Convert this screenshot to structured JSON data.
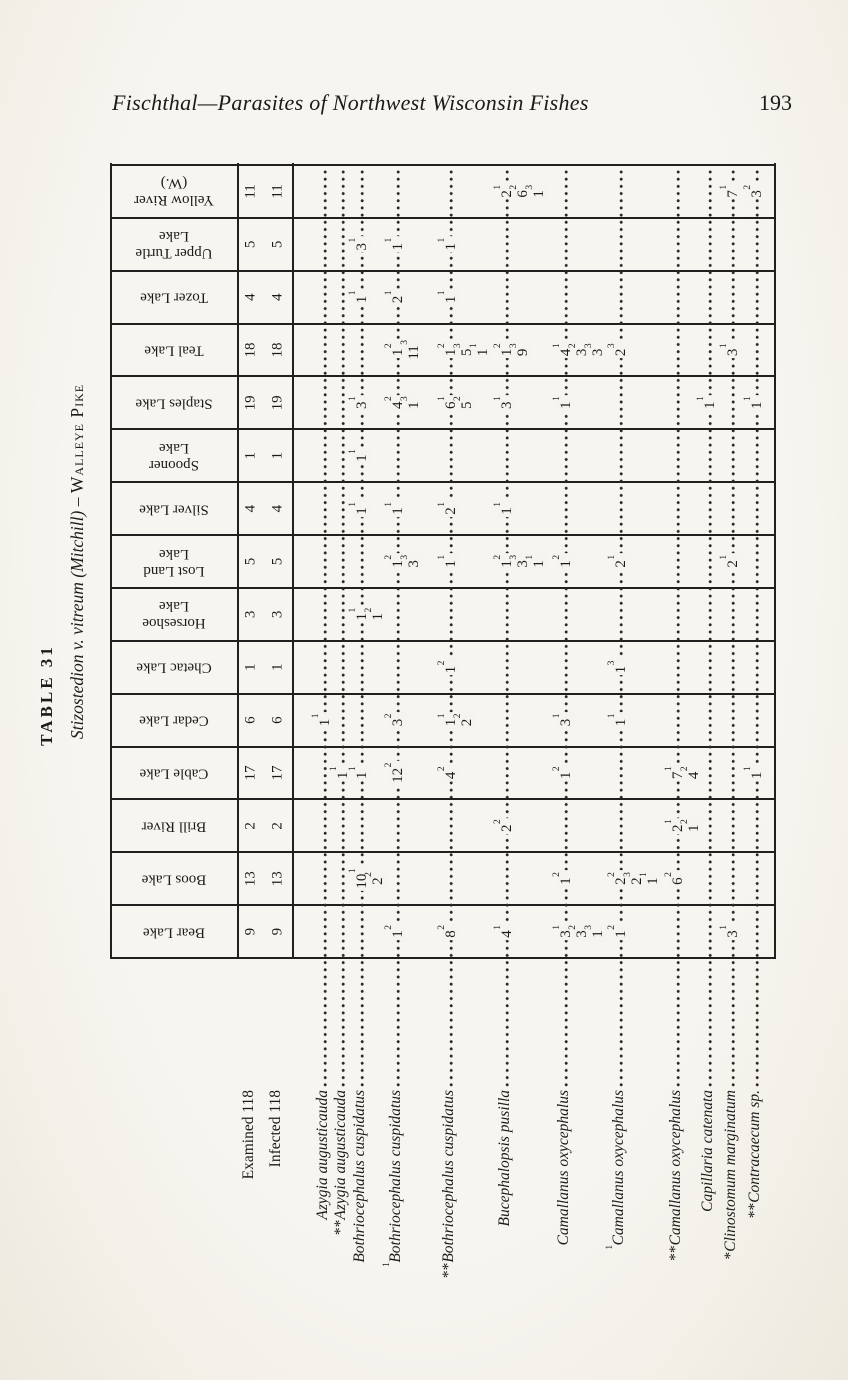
{
  "page": {
    "header_title": "Fischthal—Parasites of Northwest Wisconsin Fishes",
    "page_number": "193"
  },
  "table": {
    "title": "TABLE 31",
    "subtitle_italic": "Stizostedion v. vitreum (Mitchill) – ",
    "subtitle_caps": "Walleye Pike",
    "stub": {
      "examined_label": "Examined 118",
      "infected_label": "Infected 118"
    },
    "lakes": [
      {
        "name": "Bear Lake",
        "examined": "9",
        "infected": "9"
      },
      {
        "name": "Boos Lake",
        "examined": "13",
        "infected": "13"
      },
      {
        "name": "Brill River",
        "examined": "2",
        "infected": "2"
      },
      {
        "name": "Cable Lake",
        "examined": "17",
        "infected": "17"
      },
      {
        "name": "Cedar Lake",
        "examined": "6",
        "infected": "6"
      },
      {
        "name": "Chetac Lake",
        "examined": "1",
        "infected": "1"
      },
      {
        "name": "Horseshoe\nLake",
        "examined": "3",
        "infected": "3"
      },
      {
        "name": "Lost Land\nLake",
        "examined": "5",
        "infected": "5"
      },
      {
        "name": "Silver Lake",
        "examined": "4",
        "infected": "4"
      },
      {
        "name": "Spooner\nLake",
        "examined": "1",
        "infected": "1"
      },
      {
        "name": "Staples Lake",
        "examined": "19",
        "infected": "19"
      },
      {
        "name": "Teal Lake",
        "examined": "18",
        "infected": "18"
      },
      {
        "name": "Tozer Lake",
        "examined": "4",
        "infected": "4"
      },
      {
        "name": "Upper Turtle\nLake",
        "examined": "5",
        "infected": "5"
      },
      {
        "name": "Yellow River\n(W.)",
        "examined": "11",
        "infected": "11"
      }
    ],
    "species": [
      {
        "star": "",
        "sup": "",
        "name": "Azygia augusticauda"
      },
      {
        "star": "**",
        "sup": "",
        "name": "Azygia augusticauda"
      },
      {
        "star": "",
        "sup": "",
        "name": "Bothriocephalus cuspidatus"
      },
      {
        "star": "",
        "sup": "1",
        "name": "Bothriocephalus cuspidatus"
      },
      {
        "star": "**",
        "sup": "",
        "name": "Bothriocephalus cuspidatus"
      },
      {
        "star": "",
        "sup": "",
        "name": "Bucephalopsis pusilla"
      },
      {
        "star": "",
        "sup": "",
        "name": "Camallanus oxycephalus"
      },
      {
        "star": "",
        "sup": "1",
        "name": "Camallanus oxycephalus"
      },
      {
        "star": "**",
        "sup": "",
        "name": "Camallanus oxycephalus"
      },
      {
        "star": "",
        "sup": "",
        "name": "Capillaria catenata"
      },
      {
        "star": "*",
        "sup": "",
        "name": "Clinostomum marginatum"
      },
      {
        "star": "**",
        "sup": "",
        "name": "Contracaecum sp."
      }
    ],
    "cells": [
      {
        "lake": 0,
        "species": 3,
        "values": [
          "1^2"
        ]
      },
      {
        "lake": 0,
        "species": 4,
        "values": [
          "8^2"
        ]
      },
      {
        "lake": 0,
        "species": 5,
        "values": [
          "4^1"
        ]
      },
      {
        "lake": 0,
        "species": 6,
        "values": [
          "3^1",
          "3^2",
          "1^3"
        ]
      },
      {
        "lake": 0,
        "species": 7,
        "values": [
          "1^2"
        ]
      },
      {
        "lake": 0,
        "species": 10,
        "values": [
          "3^1"
        ]
      },
      {
        "lake": 1,
        "species": 2,
        "values": [
          "10^1",
          "2^2"
        ]
      },
      {
        "lake": 1,
        "species": 6,
        "values": [
          "1^2"
        ]
      },
      {
        "lake": 1,
        "species": 7,
        "values": [
          "2^2",
          "2^3",
          "1^1"
        ]
      },
      {
        "lake": 1,
        "species": 8,
        "values": [
          "6^2"
        ]
      },
      {
        "lake": 2,
        "species": 5,
        "values": [
          "2^2"
        ]
      },
      {
        "lake": 2,
        "species": 8,
        "values": [
          "2^1",
          "1^2"
        ]
      },
      {
        "lake": 3,
        "species": 1,
        "values": [
          "1^1"
        ]
      },
      {
        "lake": 3,
        "species": 2,
        "values": [
          "1^1"
        ]
      },
      {
        "lake": 3,
        "species": 3,
        "values": [
          "12^2"
        ]
      },
      {
        "lake": 3,
        "species": 4,
        "values": [
          "4^2"
        ]
      },
      {
        "lake": 3,
        "species": 6,
        "values": [
          "1^2"
        ]
      },
      {
        "lake": 3,
        "species": 8,
        "values": [
          "7^1",
          "4^2"
        ]
      },
      {
        "lake": 3,
        "species": 11,
        "values": [
          "1^1"
        ]
      },
      {
        "lake": 4,
        "species": 0,
        "values": [
          "1^1"
        ]
      },
      {
        "lake": 4,
        "species": 3,
        "values": [
          "3^2"
        ]
      },
      {
        "lake": 4,
        "species": 4,
        "values": [
          "1^1",
          "2^2"
        ]
      },
      {
        "lake": 4,
        "species": 6,
        "values": [
          "3^1"
        ]
      },
      {
        "lake": 4,
        "species": 7,
        "values": [
          "1^1"
        ]
      },
      {
        "lake": 5,
        "species": 4,
        "values": [
          "1^2"
        ]
      },
      {
        "lake": 5,
        "species": 7,
        "values": [
          "1^3"
        ]
      },
      {
        "lake": 6,
        "species": 2,
        "values": [
          "1^1",
          "1^2"
        ]
      },
      {
        "lake": 7,
        "species": 3,
        "values": [
          "1^2",
          "3^3"
        ]
      },
      {
        "lake": 7,
        "species": 4,
        "values": [
          "1^1"
        ]
      },
      {
        "lake": 7,
        "species": 5,
        "values": [
          "1^2",
          "3^3",
          "1^1"
        ]
      },
      {
        "lake": 7,
        "species": 6,
        "values": [
          "1^2"
        ]
      },
      {
        "lake": 7,
        "species": 7,
        "values": [
          "2^1"
        ]
      },
      {
        "lake": 7,
        "species": 10,
        "values": [
          "2^1"
        ]
      },
      {
        "lake": 8,
        "species": 2,
        "values": [
          "1^1"
        ]
      },
      {
        "lake": 8,
        "species": 3,
        "values": [
          "1^1"
        ]
      },
      {
        "lake": 8,
        "species": 4,
        "values": [
          "2^1"
        ]
      },
      {
        "lake": 8,
        "species": 5,
        "values": [
          "1^1"
        ]
      },
      {
        "lake": 9,
        "species": 2,
        "values": [
          "1^1"
        ]
      },
      {
        "lake": 10,
        "species": 2,
        "values": [
          "3^1"
        ]
      },
      {
        "lake": 10,
        "species": 3,
        "values": [
          "4^2",
          "1^3"
        ]
      },
      {
        "lake": 10,
        "species": 4,
        "values": [
          "6^1",
          "5^2"
        ]
      },
      {
        "lake": 10,
        "species": 5,
        "values": [
          "3^1"
        ]
      },
      {
        "lake": 10,
        "species": 6,
        "values": [
          "1^1"
        ]
      },
      {
        "lake": 10,
        "species": 9,
        "values": [
          "1^1"
        ]
      },
      {
        "lake": 10,
        "species": 11,
        "values": [
          "1^1"
        ]
      },
      {
        "lake": 11,
        "species": 3,
        "values": [
          "1^2",
          "11^3"
        ]
      },
      {
        "lake": 11,
        "species": 4,
        "values": [
          "1^2",
          "5^3",
          "1^1"
        ]
      },
      {
        "lake": 11,
        "species": 5,
        "values": [
          "1^2",
          "9^3"
        ]
      },
      {
        "lake": 11,
        "species": 6,
        "values": [
          "4^1",
          "3^2",
          "3^3"
        ]
      },
      {
        "lake": 11,
        "species": 7,
        "values": [
          "2^3"
        ]
      },
      {
        "lake": 11,
        "species": 10,
        "values": [
          "3^1"
        ]
      },
      {
        "lake": 12,
        "species": 2,
        "values": [
          "1^1"
        ]
      },
      {
        "lake": 12,
        "species": 3,
        "values": [
          "2^1"
        ]
      },
      {
        "lake": 12,
        "species": 4,
        "values": [
          "1^1"
        ]
      },
      {
        "lake": 13,
        "species": 2,
        "values": [
          "3^1"
        ]
      },
      {
        "lake": 13,
        "species": 3,
        "values": [
          "1^1"
        ]
      },
      {
        "lake": 13,
        "species": 4,
        "values": [
          "1^1"
        ]
      },
      {
        "lake": 14,
        "species": 5,
        "values": [
          "2^1",
          "6^2",
          "1^3"
        ]
      },
      {
        "lake": 14,
        "species": 10,
        "values": [
          "7^1"
        ]
      },
      {
        "lake": 14,
        "species": 11,
        "values": [
          "3^2"
        ]
      }
    ]
  }
}
